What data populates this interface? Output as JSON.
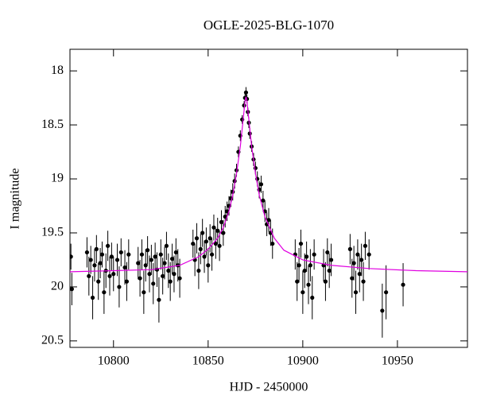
{
  "chart_data": {
    "type": "scatter",
    "title": "OGLE-2025-BLG-1070",
    "x_label": "HJD - 2450000",
    "y_label": "I magnitude",
    "xlim": [
      10777,
      10987
    ],
    "ylim": [
      20.56,
      17.8
    ],
    "xticks": [
      10800,
      10850,
      10900,
      10950
    ],
    "yticks": [
      18,
      18.5,
      19,
      19.5,
      20,
      20.5
    ],
    "series": [
      {
        "type": "scatter",
        "color": "#000000",
        "x": [
          10777.5,
          10778,
          10786,
          10787,
          10788,
          10789,
          10790,
          10791,
          10792,
          10793,
          10794,
          10795,
          10796,
          10797,
          10798,
          10799,
          10800,
          10802,
          10803,
          10804,
          10806,
          10807,
          10808,
          10813,
          10814,
          10815,
          10816,
          10817,
          10818,
          10819,
          10820,
          10821,
          10822,
          10823,
          10824,
          10825,
          10826,
          10827,
          10828,
          10829,
          10830,
          10831,
          10832,
          10833,
          10834,
          10835,
          10842,
          10843,
          10844,
          10845,
          10846,
          10847,
          10848,
          10849,
          10850,
          10851,
          10852,
          10853,
          10854,
          10855,
          10856,
          10857,
          10858,
          10859,
          10860,
          10861,
          10862,
          10863,
          10864,
          10865,
          10866,
          10867,
          10868,
          10869,
          10869.5,
          10870,
          10870.5,
          10871,
          10871.5,
          10872,
          10873,
          10874,
          10875,
          10876,
          10877,
          10878,
          10879,
          10880,
          10881,
          10882,
          10883,
          10884,
          10896,
          10897,
          10898,
          10899,
          10900,
          10901,
          10902,
          10903,
          10904,
          10905,
          10906,
          10911,
          10912,
          10913,
          10914,
          10915,
          10925,
          10926,
          10927,
          10928,
          10929,
          10930,
          10931,
          10932,
          10933,
          10935,
          10942,
          10944,
          10953
        ],
        "values": [
          19.72,
          20.02,
          19.68,
          19.9,
          19.75,
          20.1,
          19.8,
          19.65,
          19.95,
          19.78,
          19.7,
          20.05,
          19.85,
          19.62,
          19.9,
          19.72,
          19.88,
          19.75,
          20.0,
          19.68,
          19.82,
          19.95,
          19.7,
          19.78,
          19.92,
          19.7,
          20.05,
          19.8,
          19.66,
          19.88,
          19.75,
          19.97,
          19.72,
          19.84,
          20.12,
          19.7,
          19.9,
          19.78,
          19.62,
          19.85,
          19.95,
          19.74,
          19.88,
          19.68,
          19.8,
          19.92,
          19.6,
          19.75,
          19.55,
          19.85,
          19.65,
          19.5,
          19.72,
          19.58,
          19.8,
          19.55,
          19.7,
          19.45,
          19.6,
          19.48,
          19.62,
          19.4,
          19.5,
          19.35,
          19.3,
          19.25,
          19.18,
          19.12,
          19.02,
          18.92,
          18.75,
          18.6,
          18.45,
          18.32,
          18.25,
          18.2,
          18.26,
          18.38,
          18.48,
          18.58,
          18.7,
          18.82,
          18.9,
          19.0,
          19.1,
          19.05,
          19.2,
          19.3,
          19.42,
          19.38,
          19.5,
          19.6,
          19.7,
          19.95,
          19.8,
          19.6,
          20.05,
          19.85,
          19.72,
          19.98,
          19.8,
          20.1,
          19.7,
          19.8,
          19.95,
          19.68,
          19.85,
          19.75,
          19.65,
          19.92,
          19.78,
          20.05,
          19.7,
          19.88,
          19.75,
          19.95,
          19.62,
          19.7,
          20.22,
          20.05,
          19.98
        ],
        "errors": [
          0.12,
          0.15,
          0.14,
          0.18,
          0.13,
          0.2,
          0.15,
          0.13,
          0.17,
          0.14,
          0.12,
          0.2,
          0.16,
          0.14,
          0.18,
          0.13,
          0.16,
          0.15,
          0.19,
          0.13,
          0.16,
          0.18,
          0.14,
          0.15,
          0.17,
          0.14,
          0.2,
          0.15,
          0.13,
          0.17,
          0.14,
          0.19,
          0.13,
          0.16,
          0.21,
          0.14,
          0.17,
          0.15,
          0.13,
          0.16,
          0.18,
          0.14,
          0.17,
          0.13,
          0.15,
          0.18,
          0.13,
          0.15,
          0.14,
          0.17,
          0.14,
          0.13,
          0.15,
          0.13,
          0.16,
          0.13,
          0.15,
          0.12,
          0.14,
          0.12,
          0.14,
          0.11,
          0.12,
          0.1,
          0.09,
          0.09,
          0.08,
          0.08,
          0.07,
          0.06,
          0.05,
          0.05,
          0.04,
          0.04,
          0.04,
          0.05,
          0.04,
          0.04,
          0.05,
          0.05,
          0.05,
          0.06,
          0.06,
          0.07,
          0.08,
          0.08,
          0.09,
          0.1,
          0.11,
          0.11,
          0.12,
          0.14,
          0.14,
          0.18,
          0.16,
          0.13,
          0.2,
          0.16,
          0.14,
          0.18,
          0.15,
          0.2,
          0.14,
          0.15,
          0.18,
          0.13,
          0.16,
          0.15,
          0.14,
          0.18,
          0.16,
          0.2,
          0.14,
          0.17,
          0.15,
          0.18,
          0.13,
          0.14,
          0.25,
          0.25,
          0.2
        ]
      },
      {
        "type": "line",
        "color": "#e000e0",
        "x": [
          10777,
          10800,
          10820,
          10835,
          10845,
          10850,
          10855,
          10858,
          10861,
          10863,
          10865,
          10867,
          10868.5,
          10869.5,
          10870,
          10870.5,
          10871.5,
          10873,
          10875,
          10877,
          10880,
          10885,
          10890,
          10900,
          10915,
          10935,
          10960,
          10987
        ],
        "values": [
          19.86,
          19.85,
          19.84,
          19.8,
          19.72,
          19.65,
          19.55,
          19.45,
          19.3,
          19.15,
          18.95,
          18.7,
          18.45,
          18.28,
          18.24,
          18.28,
          18.45,
          18.7,
          18.95,
          19.15,
          19.35,
          19.55,
          19.66,
          19.75,
          19.8,
          19.83,
          19.85,
          19.86
        ]
      }
    ]
  }
}
